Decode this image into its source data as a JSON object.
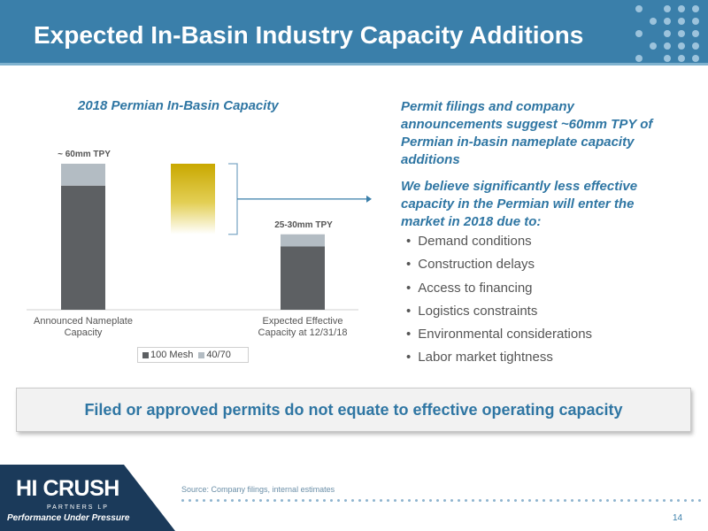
{
  "header": {
    "title": "Expected In-Basin Industry Capacity Additions"
  },
  "chart_data": {
    "type": "bar",
    "title": "2018 Permian In-Basin Capacity",
    "categories": [
      "Announced Nameplate Capacity",
      "Expected Effective Capacity at 12/31/18"
    ],
    "series": [
      {
        "name": "100 Mesh",
        "values": [
          51,
          26
        ],
        "color": "#5d6063"
      },
      {
        "name": "40/70",
        "values": [
          9,
          5
        ],
        "color": "#b3bcc3"
      }
    ],
    "bar_labels": [
      "~ 60mm TPY",
      "25-30mm TPY"
    ],
    "bracket_color": "#c9a800"
  },
  "legend": {
    "item1": "100 Mesh",
    "item2": "40/70"
  },
  "right_panel": {
    "para1": "Permit filings and company announcements suggest ~60mm TPY of Permian in-basin nameplate capacity additions",
    "para2": "We believe significantly less effective capacity in the Permian will enter the market in 2018 due to:",
    "bullets": [
      "Demand conditions",
      "Construction delays",
      "Access to financing",
      "Logistics constraints",
      "Environmental considerations",
      "Labor market tightness"
    ]
  },
  "callout": {
    "text": "Filed or approved permits do not equate to effective operating capacity"
  },
  "footer": {
    "source": "Source: Company filings, internal estimates",
    "page_number": "14",
    "logo_text": "HI CRUSH",
    "logo_sub": "PARTNERS LP",
    "logo_tagline": "Performance Under Pressure"
  },
  "colors": {
    "brand_blue": "#3a7faa",
    "dark_navy": "#1b3a5a",
    "text_blue": "#2f76a3"
  }
}
